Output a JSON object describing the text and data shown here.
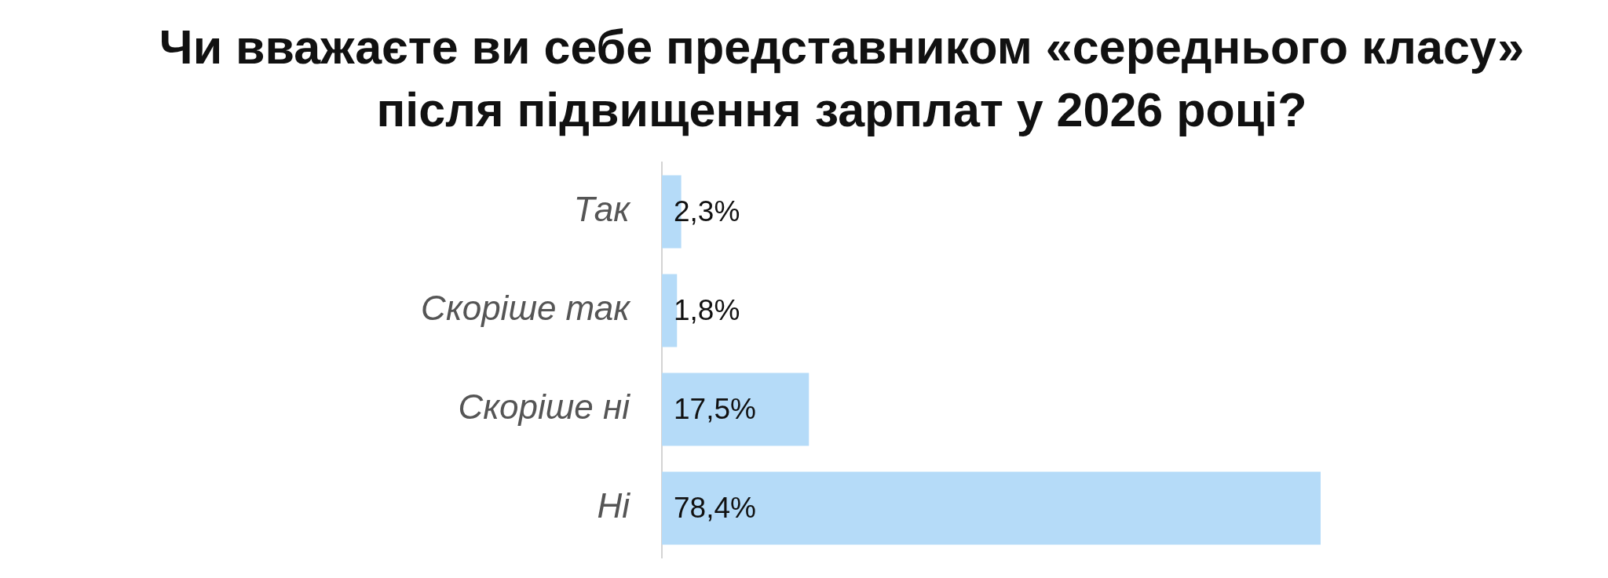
{
  "chart_data": {
    "type": "bar",
    "orientation": "horizontal",
    "title": "Чи вважаєте ви себе представником «середнього класу» після підвищення зарплат у 2026 році?",
    "categories": [
      "Так",
      "Скоріше так",
      "Скоріше ні",
      "Ні"
    ],
    "values": [
      2.3,
      1.8,
      17.5,
      78.4
    ],
    "value_labels": [
      "2,3%",
      "1,8%",
      "17,5%",
      "78,4%"
    ],
    "color": "#b5dbf8",
    "tick_labels": "y"
  }
}
